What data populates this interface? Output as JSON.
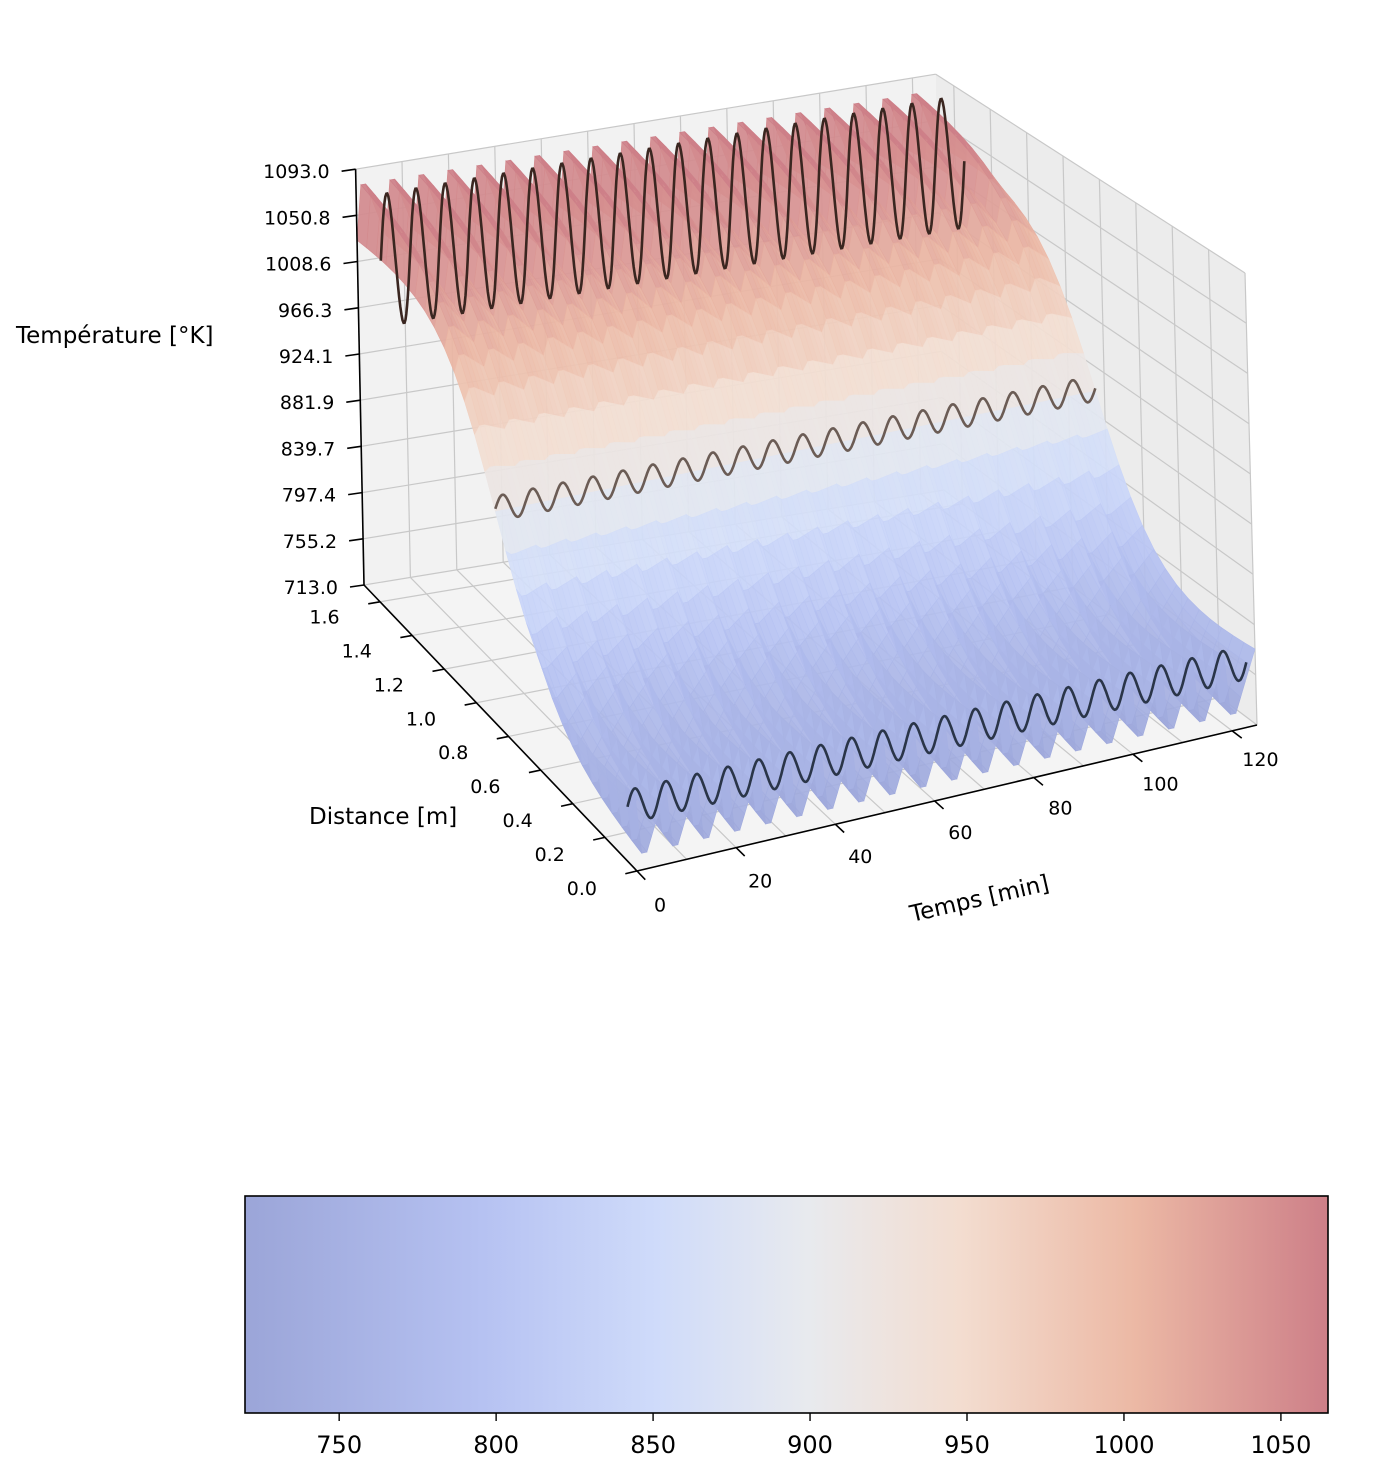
{
  "chart_data": [
    {
      "type": "surface3d",
      "zlabel": "Température [°K]",
      "ylabel": "Distance [m]",
      "xlabel": "Temps [min]",
      "x_ticks": [
        "0",
        "20",
        "40",
        "60",
        "80",
        "100",
        "120"
      ],
      "y_ticks": [
        "0.0",
        "0.2",
        "0.4",
        "0.6",
        "0.8",
        "1.0",
        "1.2",
        "1.4",
        "1.6"
      ],
      "z_ticks": [
        "713.0",
        "755.2",
        "797.4",
        "839.7",
        "881.9",
        "924.1",
        "966.3",
        "1008.6",
        "1050.8",
        "1093.0"
      ],
      "xlim": [
        0,
        125
      ],
      "ylim": [
        0,
        1.7
      ],
      "zlim": [
        713.0,
        1093.0
      ],
      "colormap": "coolwarm",
      "surface": {
        "cycles": 20,
        "inlet_temperature_mean": 745,
        "outlet_temperature_mean": 1060,
        "oscillation_amplitude": 30
      },
      "series": [
        {
          "distance": 0.05,
          "mean": 760,
          "amplitude": 14,
          "cycles": 20,
          "color": "#2a3548"
        },
        {
          "distance": 0.85,
          "mean": 905,
          "amplitude": 11,
          "cycles": 20,
          "color": "#6b5c55"
        },
        {
          "distance": 1.55,
          "mean": 1030,
          "amplitude": 60,
          "cycles": 20,
          "color": "#3a2620"
        }
      ]
    },
    {
      "type": "colorbar",
      "range": [
        720,
        1065
      ],
      "ticks": [
        "750",
        "800",
        "850",
        "900",
        "950",
        "1000",
        "1050"
      ],
      "tick_values": [
        750,
        800,
        850,
        900,
        950,
        1000,
        1050
      ],
      "colormap": "coolwarm"
    }
  ]
}
